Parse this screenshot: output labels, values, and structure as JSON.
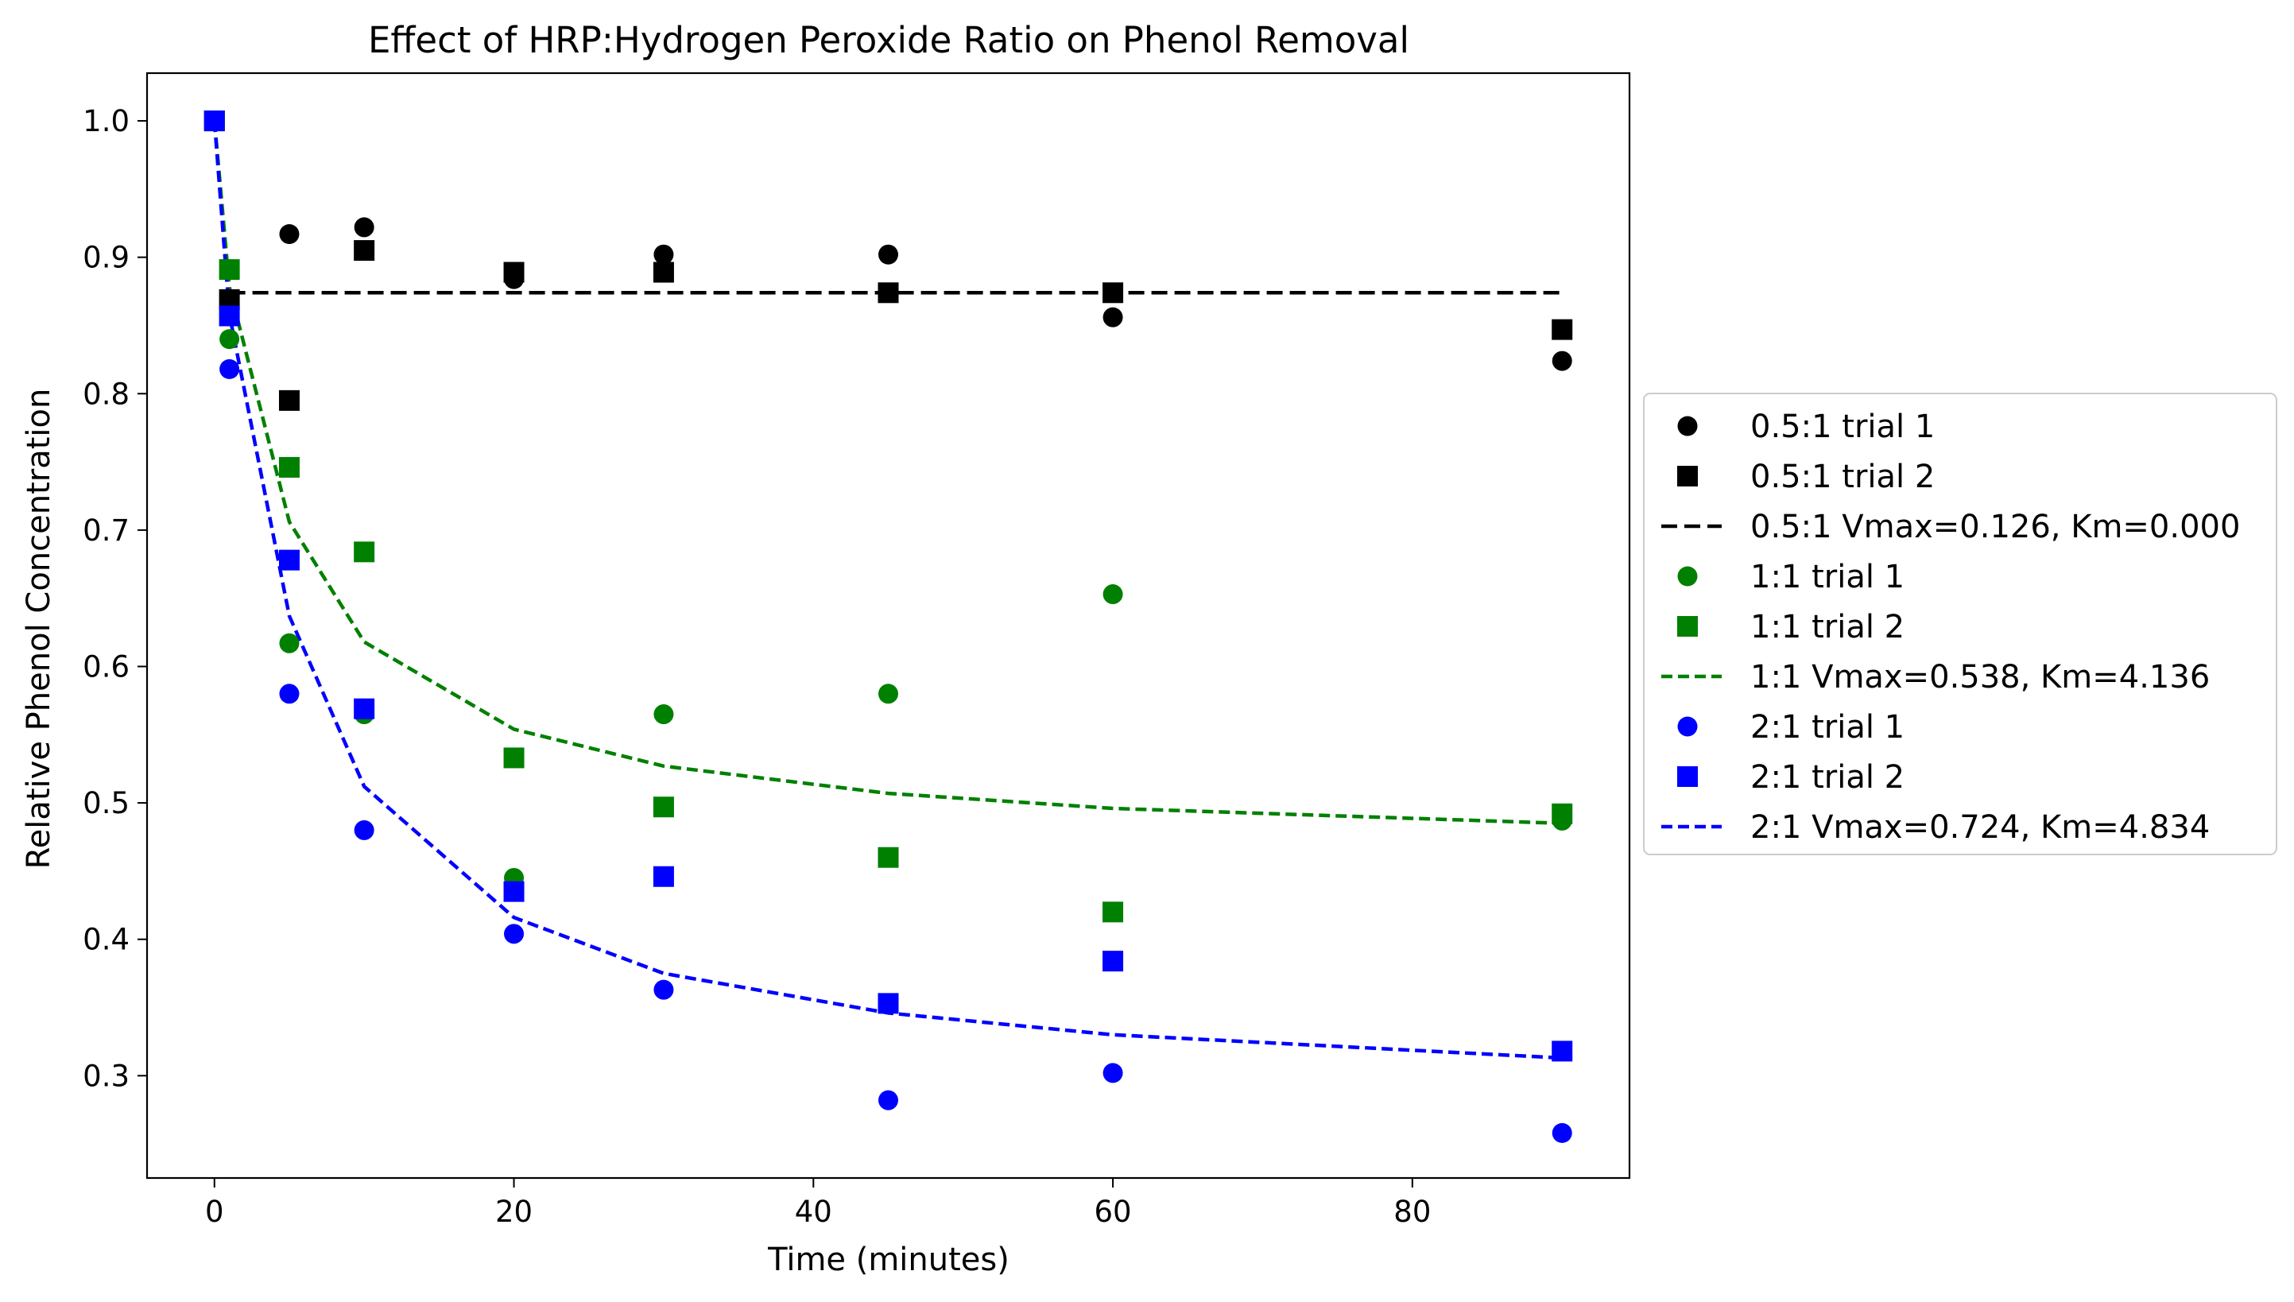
{
  "chart_data": {
    "type": "scatter",
    "title": "Effect of HRP:Hydrogen Peroxide Ratio on Phenol Removal",
    "xlabel": "Time (minutes)",
    "ylabel": "Relative Phenol Concentration",
    "xlim": [
      -4.5,
      94.5
    ],
    "ylim": [
      0.225,
      1.035
    ],
    "x_ticks": [
      0,
      20,
      40,
      60,
      80
    ],
    "x_tick_labels": [
      "0",
      "20",
      "40",
      "60",
      "80"
    ],
    "y_ticks": [
      0.3,
      0.4,
      0.5,
      0.6,
      0.7,
      0.8,
      0.9,
      1.0
    ],
    "y_tick_labels": [
      "0.3",
      "0.4",
      "0.5",
      "0.6",
      "0.7",
      "0.8",
      "0.9",
      "1.0"
    ],
    "grid": false,
    "legend_position": "outside right",
    "colors": {
      "black": "#000000",
      "green": "#008000",
      "blue": "#0000ff"
    },
    "series": [
      {
        "name": "0.5:1 trial 1",
        "kind": "scatter",
        "marker": "circle",
        "color": "#000000",
        "x": [
          0,
          1,
          5,
          10,
          20,
          30,
          45,
          60,
          90
        ],
        "y": [
          1.0,
          0.869,
          0.917,
          0.922,
          0.884,
          0.902,
          0.902,
          0.856,
          0.824
        ]
      },
      {
        "name": "0.5:1 trial 2",
        "kind": "scatter",
        "marker": "square",
        "color": "#000000",
        "x": [
          0,
          1,
          5,
          10,
          20,
          30,
          45,
          60,
          90
        ],
        "y": [
          1.0,
          0.869,
          0.795,
          0.905,
          0.889,
          0.889,
          0.874,
          0.874,
          0.847
        ]
      },
      {
        "name": "0.5:1 Vmax=0.126, Km=0.000",
        "kind": "line",
        "dash": "long",
        "color": "#000000",
        "x": [
          1,
          5,
          10,
          20,
          30,
          45,
          60,
          90
        ],
        "y": [
          0.874,
          0.874,
          0.874,
          0.874,
          0.874,
          0.874,
          0.874,
          0.874
        ]
      },
      {
        "name": "1:1 trial 1",
        "kind": "scatter",
        "marker": "circle",
        "color": "#008000",
        "x": [
          0,
          1,
          5,
          10,
          20,
          30,
          45,
          60,
          90
        ],
        "y": [
          1.0,
          0.84,
          0.617,
          0.565,
          0.445,
          0.565,
          0.58,
          0.653,
          0.487
        ]
      },
      {
        "name": "1:1 trial 2",
        "kind": "scatter",
        "marker": "square",
        "color": "#008000",
        "x": [
          0,
          1,
          5,
          10,
          20,
          30,
          45,
          60,
          90
        ],
        "y": [
          1.0,
          0.891,
          0.746,
          0.684,
          0.533,
          0.497,
          0.46,
          0.42,
          0.492
        ]
      },
      {
        "name": "1:1 Vmax=0.538, Km=4.136",
        "kind": "line",
        "dash": "short",
        "color": "#008000",
        "x": [
          0,
          1,
          5,
          10,
          20,
          30,
          45,
          60,
          90
        ],
        "y": [
          1.0,
          0.878,
          0.706,
          0.618,
          0.554,
          0.527,
          0.507,
          0.496,
          0.485
        ]
      },
      {
        "name": "2:1 trial 1",
        "kind": "scatter",
        "marker": "circle",
        "color": "#0000ff",
        "x": [
          0,
          1,
          5,
          10,
          20,
          30,
          45,
          60,
          90
        ],
        "y": [
          1.0,
          0.818,
          0.58,
          0.48,
          0.404,
          0.363,
          0.282,
          0.302,
          0.258
        ]
      },
      {
        "name": "2:1 trial 2",
        "kind": "scatter",
        "marker": "square",
        "color": "#0000ff",
        "x": [
          0,
          1,
          5,
          10,
          20,
          30,
          45,
          60,
          90
        ],
        "y": [
          1.0,
          0.857,
          0.678,
          0.569,
          0.435,
          0.446,
          0.353,
          0.384,
          0.318
        ]
      },
      {
        "name": "2:1 Vmax=0.724, Km=4.834",
        "kind": "line",
        "dash": "short",
        "color": "#0000ff",
        "x": [
          0,
          1,
          5,
          10,
          20,
          30,
          45,
          60,
          90
        ],
        "y": [
          1.0,
          0.858,
          0.637,
          0.512,
          0.416,
          0.375,
          0.346,
          0.33,
          0.313
        ]
      }
    ]
  }
}
